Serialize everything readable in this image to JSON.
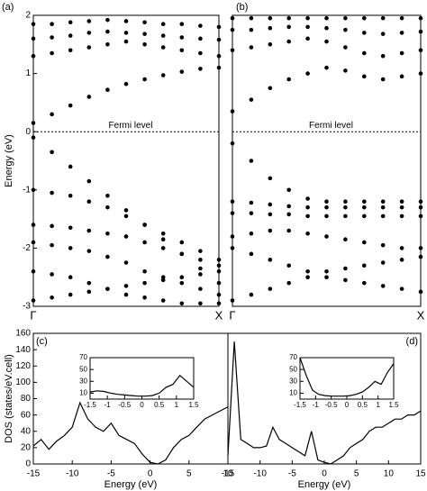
{
  "chart_data": [
    {
      "type": "scatter",
      "label": "(a)",
      "ylabel": "Energy (eV)",
      "annotation": "Fermi level",
      "color": "#000000",
      "x": [
        0,
        0.1,
        0.2,
        0.3,
        0.4,
        0.5,
        0.6,
        0.7,
        0.8,
        0.9,
        1
      ],
      "xlim": [
        0,
        1
      ],
      "xticks": [
        {
          "value": 0,
          "label": "Γ"
        },
        {
          "value": 1,
          "label": "X"
        }
      ],
      "ylim": [
        -3,
        2
      ],
      "yticks": [
        2,
        1,
        0,
        -1,
        -2,
        -3
      ],
      "series": [
        {
          "values": [
            0.15,
            0.3,
            0.45,
            0.6,
            0.72,
            0.82,
            0.9,
            0.97,
            1.03,
            1.08,
            1.1
          ]
        },
        {
          "values": [
            1.3,
            1.35,
            1.4,
            1.45,
            1.5,
            1.55,
            1.5,
            1.45,
            1.4,
            1.35,
            1.3
          ]
        },
        {
          "values": [
            1.6,
            1.62,
            1.65,
            1.7,
            1.72,
            1.7,
            1.68,
            1.65,
            1.62,
            1.6,
            1.58
          ]
        },
        {
          "values": [
            1.85,
            1.85,
            1.88,
            1.9,
            1.92,
            1.9,
            1.88,
            1.85,
            1.85,
            1.82,
            1.8
          ]
        },
        {
          "values": [
            -0.1,
            -0.35,
            -0.6,
            -0.85,
            -1.1,
            -1.35,
            -1.6,
            -1.85,
            -2.1,
            -2.35,
            -2.6
          ]
        },
        {
          "values": [
            -1.0,
            -1.05,
            -1.1,
            -1.2,
            -1.3,
            -1.45,
            -1.6,
            -1.75,
            -1.9,
            -2.05,
            -2.2
          ]
        },
        {
          "values": [
            -1.6,
            -1.62,
            -1.65,
            -1.7,
            -1.75,
            -1.8,
            -1.9,
            -2.0,
            -2.1,
            -2.2,
            -2.3
          ]
        },
        {
          "values": [
            -1.9,
            -1.95,
            -2.0,
            -2.05,
            -2.15,
            -2.25,
            -2.4,
            -2.5,
            -2.6,
            -2.7,
            -2.8
          ]
        },
        {
          "values": [
            -2.9,
            -2.85,
            -2.8,
            -2.75,
            -2.7,
            -2.65,
            -2.6,
            -2.55,
            -2.5,
            -2.45,
            -2.4
          ]
        },
        {
          "values": [
            -2.4,
            -2.45,
            -2.5,
            -2.6,
            -2.7,
            -2.8,
            -2.85,
            -2.9,
            -2.95,
            -2.95,
            -2.95
          ]
        }
      ]
    },
    {
      "type": "scatter",
      "label": "(b)",
      "annotation": "Fermi level",
      "color": "#000000",
      "x": [
        0,
        0.1,
        0.2,
        0.3,
        0.4,
        0.5,
        0.6,
        0.7,
        0.8,
        0.9,
        1
      ],
      "xlim": [
        0,
        1
      ],
      "xticks": [
        {
          "value": 0,
          "label": "Γ"
        },
        {
          "value": 1,
          "label": "X"
        }
      ],
      "ylim": [
        -3,
        2
      ],
      "series": [
        {
          "values": [
            0.35,
            0.55,
            0.75,
            0.9,
            1.0,
            1.1,
            1.05,
            0.95,
            0.9,
            0.95,
            1.0
          ]
        },
        {
          "values": [
            1.4,
            1.45,
            1.5,
            1.55,
            1.6,
            1.55,
            1.45,
            1.35,
            1.3,
            1.35,
            1.4
          ]
        },
        {
          "values": [
            1.75,
            1.75,
            1.78,
            1.8,
            1.8,
            1.78,
            1.75,
            1.7,
            1.68,
            1.7,
            1.72
          ]
        },
        {
          "values": [
            1.95,
            1.95,
            1.95,
            1.95,
            1.95,
            1.95,
            1.95,
            1.95,
            1.95,
            1.95,
            1.95
          ]
        },
        {
          "values": [
            -0.2,
            -0.5,
            -0.8,
            -1.0,
            -1.15,
            -1.2,
            -1.2,
            -1.2,
            -1.2,
            -1.2,
            -1.2
          ]
        },
        {
          "values": [
            -1.2,
            -1.22,
            -1.25,
            -1.28,
            -1.3,
            -1.3,
            -1.3,
            -1.3,
            -1.3,
            -1.3,
            -1.3
          ]
        },
        {
          "values": [
            -1.4,
            -1.4,
            -1.42,
            -1.42,
            -1.45,
            -1.45,
            -1.45,
            -1.45,
            -1.45,
            -1.45,
            -1.45
          ]
        },
        {
          "values": [
            -1.8,
            -1.75,
            -1.7,
            -1.7,
            -1.75,
            -1.8,
            -1.85,
            -1.9,
            -1.95,
            -2.0,
            -2.0
          ]
        },
        {
          "values": [
            -2.0,
            -2.1,
            -2.2,
            -2.3,
            -2.4,
            -2.5,
            -2.55,
            -2.6,
            -2.65,
            -2.7,
            -2.75
          ]
        },
        {
          "values": [
            -2.9,
            -2.8,
            -2.7,
            -2.6,
            -2.5,
            -2.4,
            -2.35,
            -2.3,
            -2.25,
            -2.2,
            -2.15
          ]
        }
      ]
    },
    {
      "type": "line",
      "label": "(c)",
      "ylabel": "DOS (states/eV.cell)",
      "xlabel": "Energy (eV)",
      "color": "#000000",
      "x": [
        -15,
        -14,
        -13,
        -12,
        -11,
        -10,
        -9,
        -8,
        -7,
        -6,
        -5,
        -4,
        -3,
        -2,
        -1,
        0,
        1,
        2,
        3,
        4,
        5,
        6,
        7,
        8,
        9,
        10
      ],
      "xlim": [
        -15,
        10
      ],
      "xticks": [
        -15,
        -10,
        -5,
        0,
        5,
        10
      ],
      "ylim": [
        0,
        160
      ],
      "yticks": [
        0,
        20,
        40,
        60,
        80,
        100,
        120,
        140,
        160
      ],
      "values": [
        22,
        30,
        18,
        28,
        35,
        45,
        75,
        55,
        45,
        40,
        50,
        35,
        30,
        25,
        12,
        2,
        0,
        5,
        20,
        30,
        35,
        45,
        55,
        60,
        65,
        70
      ]
    },
    {
      "type": "line",
      "label": "(d)",
      "xlabel": "Energy (eV)",
      "color": "#000000",
      "x": [
        -15,
        -14,
        -13,
        -12,
        -11,
        -10,
        -9,
        -8,
        -7,
        -6,
        -5,
        -4,
        -3,
        -2,
        -1,
        0,
        1,
        2,
        3,
        4,
        5,
        6,
        7,
        8,
        9,
        10,
        11,
        12,
        13,
        14,
        15
      ],
      "xlim": [
        -15,
        15
      ],
      "xticks": [
        -15,
        -10,
        -5,
        0,
        5,
        10,
        15
      ],
      "ylim": [
        0,
        160
      ],
      "values": [
        10,
        150,
        30,
        25,
        20,
        20,
        22,
        45,
        30,
        25,
        20,
        15,
        10,
        40,
        5,
        2,
        0,
        5,
        10,
        20,
        25,
        30,
        40,
        45,
        45,
        50,
        55,
        55,
        60,
        60,
        65
      ]
    },
    {
      "type": "line",
      "color": "#000000",
      "x": [
        -1.5,
        -1.3,
        -1.1,
        -0.9,
        -0.7,
        -0.5,
        -0.3,
        -0.1,
        0.1,
        0.3,
        0.5,
        0.7,
        0.9,
        1.1,
        1.3,
        1.5
      ],
      "xlim": [
        -1.5,
        1.5
      ],
      "xticks": [
        -1.5,
        -1,
        -0.5,
        0,
        0.5,
        1,
        1.5
      ],
      "ylim": [
        0,
        70
      ],
      "yticks": [
        10,
        30,
        50,
        70
      ],
      "values": [
        12,
        14,
        13,
        10,
        8,
        7,
        6,
        5,
        5,
        6,
        10,
        20,
        25,
        40,
        30,
        20
      ]
    },
    {
      "type": "line",
      "color": "#000000",
      "x": [
        -1.5,
        -1.3,
        -1.1,
        -0.9,
        -0.7,
        -0.5,
        -0.3,
        -0.1,
        0.1,
        0.3,
        0.5,
        0.7,
        0.9,
        1.1,
        1.3,
        1.5
      ],
      "xlim": [
        -1.5,
        1.5
      ],
      "xticks": [
        -1.5,
        -1,
        -0.5,
        0,
        0.5,
        1,
        1.5
      ],
      "ylim": [
        0,
        70
      ],
      "yticks": [
        10,
        30,
        50,
        70
      ],
      "values": [
        70,
        40,
        15,
        8,
        6,
        5,
        5,
        5,
        6,
        8,
        12,
        20,
        30,
        25,
        45,
        60
      ]
    }
  ]
}
